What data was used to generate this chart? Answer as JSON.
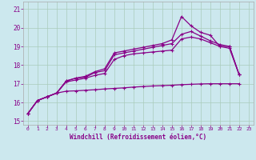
{
  "xlabel": "Windchill (Refroidissement éolien,°C)",
  "background_color": "#cce8ee",
  "grid_color": "#aaccbb",
  "line_color": "#880088",
  "xlim": [
    -0.5,
    23.5
  ],
  "ylim": [
    14.8,
    21.4
  ],
  "xticks": [
    0,
    1,
    2,
    3,
    4,
    5,
    6,
    7,
    8,
    9,
    10,
    11,
    12,
    13,
    14,
    15,
    16,
    17,
    18,
    19,
    20,
    21,
    22,
    23
  ],
  "yticks": [
    15,
    16,
    17,
    18,
    19,
    20,
    21
  ],
  "line1_x": [
    0,
    1,
    2,
    3,
    4,
    5,
    6,
    7,
    8,
    9,
    10,
    11,
    12,
    13,
    14,
    15,
    16,
    17,
    18,
    19,
    20,
    21,
    22
  ],
  "line1_y": [
    15.4,
    16.1,
    16.3,
    16.5,
    16.6,
    16.62,
    16.65,
    16.68,
    16.72,
    16.75,
    16.78,
    16.82,
    16.85,
    16.88,
    16.9,
    16.92,
    16.95,
    16.97,
    16.99,
    17.0,
    17.0,
    17.0,
    17.0
  ],
  "line2_x": [
    0,
    1,
    2,
    3,
    4,
    5,
    6,
    7,
    8,
    9,
    10,
    11,
    12,
    13,
    14,
    15,
    16,
    17,
    18,
    19,
    20,
    21,
    22
  ],
  "line2_y": [
    15.4,
    16.1,
    16.3,
    16.5,
    17.1,
    17.2,
    17.3,
    17.45,
    17.55,
    18.3,
    18.5,
    18.6,
    18.65,
    18.7,
    18.75,
    18.8,
    19.4,
    19.5,
    19.4,
    19.2,
    19.0,
    18.9,
    17.5
  ],
  "line3_x": [
    0,
    1,
    2,
    3,
    4,
    5,
    6,
    7,
    8,
    9,
    10,
    11,
    12,
    13,
    14,
    15,
    16,
    17,
    18,
    19,
    20,
    21,
    22
  ],
  "line3_y": [
    15.4,
    16.1,
    16.3,
    16.5,
    17.15,
    17.3,
    17.35,
    17.6,
    17.7,
    18.55,
    18.65,
    18.75,
    18.85,
    18.95,
    19.05,
    19.15,
    19.65,
    19.8,
    19.55,
    19.3,
    19.1,
    19.0,
    17.5
  ],
  "line4_x": [
    0,
    1,
    2,
    3,
    4,
    5,
    6,
    7,
    8,
    9,
    10,
    11,
    12,
    13,
    14,
    15,
    16,
    17,
    18,
    19,
    20,
    21,
    22
  ],
  "line4_y": [
    15.4,
    16.1,
    16.3,
    16.5,
    17.15,
    17.3,
    17.4,
    17.65,
    17.8,
    18.65,
    18.75,
    18.85,
    18.95,
    19.05,
    19.15,
    19.35,
    20.6,
    20.1,
    19.75,
    19.6,
    19.0,
    19.0,
    17.5
  ]
}
